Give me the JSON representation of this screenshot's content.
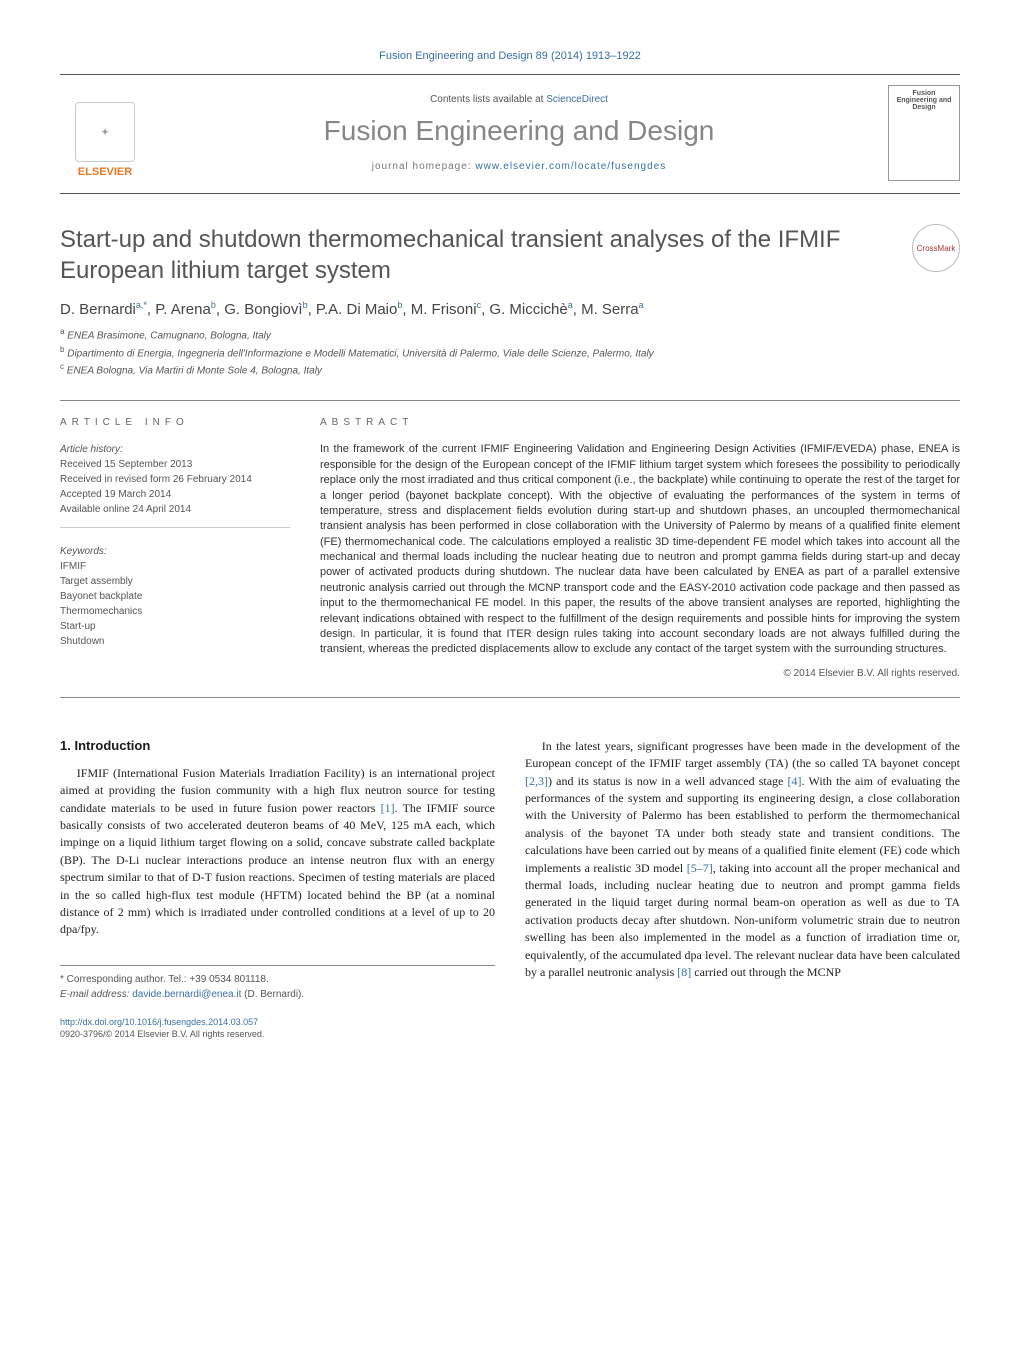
{
  "header": {
    "citation": "Fusion Engineering and Design 89 (2014) 1913–1922",
    "contents_prefix": "Contents lists available at ",
    "contents_link": "ScienceDirect",
    "journal_name": "Fusion Engineering and Design",
    "homepage_prefix": "journal homepage: ",
    "homepage_link": "www.elsevier.com/locate/fusengdes",
    "publisher": "ELSEVIER",
    "cover_text": "Fusion Engineering and Design"
  },
  "crossmark": "CrossMark",
  "title": "Start-up and shutdown thermomechanical transient analyses of the IFMIF European lithium target system",
  "authors_html": "D. Bernardi<sup>a,*</sup>, P. Arena<sup>b</sup>, G. Bongiovì<sup>b</sup>, P.A. Di Maio<sup>b</sup>, M. Frisoni<sup>c</sup>, G. Miccichè<sup>a</sup>, M. Serra<sup>a</sup>",
  "affiliations": {
    "a": "ENEA Brasimone, Camugnano, Bologna, Italy",
    "b": "Dipartimento di Energia, Ingegneria dell'Informazione e Modelli Matematici, Università di Palermo, Viale delle Scienze, Palermo, Italy",
    "c": "ENEA Bologna, Via Martiri di Monte Sole 4, Bologna, Italy"
  },
  "article_info": {
    "label": "ARTICLE INFO",
    "history_label": "Article history:",
    "received": "Received 15 September 2013",
    "revised": "Received in revised form 26 February 2014",
    "accepted": "Accepted 19 March 2014",
    "online": "Available online 24 April 2014",
    "keywords_label": "Keywords:",
    "keywords": [
      "IFMIF",
      "Target assembly",
      "Bayonet backplate",
      "Thermomechanics",
      "Start-up",
      "Shutdown"
    ]
  },
  "abstract": {
    "label": "ABSTRACT",
    "text": "In the framework of the current IFMIF Engineering Validation and Engineering Design Activities (IFMIF/EVEDA) phase, ENEA is responsible for the design of the European concept of the IFMIF lithium target system which foresees the possibility to periodically replace only the most irradiated and thus critical component (i.e., the backplate) while continuing to operate the rest of the target for a longer period (bayonet backplate concept). With the objective of evaluating the performances of the system in terms of temperature, stress and displacement fields evolution during start-up and shutdown phases, an uncoupled thermomechanical transient analysis has been performed in close collaboration with the University of Palermo by means of a qualified finite element (FE) thermomechanical code. The calculations employed a realistic 3D time-dependent FE model which takes into account all the mechanical and thermal loads including the nuclear heating due to neutron and prompt gamma fields during start-up and decay power of activated products during shutdown. The nuclear data have been calculated by ENEA as part of a parallel extensive neutronic analysis carried out through the MCNP transport code and the EASY-2010 activation code package and then passed as input to the thermomechanical FE model. In this paper, the results of the above transient analyses are reported, highlighting the relevant indications obtained with respect to the fulfillment of the design requirements and possible hints for improving the system design. In particular, it is found that ITER design rules taking into account secondary loads are not always fulfilled during the transient, whereas the predicted displacements allow to exclude any contact of the target system with the surrounding structures.",
    "copyright": "© 2014 Elsevier B.V. All rights reserved."
  },
  "body": {
    "heading": "1.  Introduction",
    "col1": "IFMIF (International Fusion Materials Irradiation Facility) is an international project aimed at providing the fusion community with a high flux neutron source for testing candidate materials to be used in future fusion power reactors [1]. The IFMIF source basically consists of two accelerated deuteron beams of 40 MeV, 125 mA each, which impinge on a liquid lithium target flowing on a solid, concave substrate called backplate (BP). The D-Li nuclear interactions produce an intense neutron flux with an energy spectrum similar to that of D-T fusion reactions. Specimen of testing materials are placed in the so called high-flux test module (HFTM) located behind the BP (at a nominal distance of 2 mm) which is irradiated under controlled conditions at a level of up to 20 dpa/fpy.",
    "col2": "In the latest years, significant progresses have been made in the development of the European concept of the IFMIF target assembly (TA) (the so called TA bayonet concept [2,3]) and its status is now in a well advanced stage [4]. With the aim of evaluating the performances of the system and supporting its engineering design, a close collaboration with the University of Palermo has been established to perform the thermomechanical analysis of the bayonet TA under both steady state and transient conditions. The calculations have been carried out by means of a qualified finite element (FE) code which implements a realistic 3D model [5–7], taking into account all the proper mechanical and thermal loads, including nuclear heating due to neutron and prompt gamma fields generated in the liquid target during normal beam-on operation as well as due to TA activation products decay after shutdown. Non-uniform volumetric strain due to neutron swelling has been also implemented in the model as a function of irradiation time or, equivalently, of the accumulated dpa level. The relevant nuclear data have been calculated by a parallel neutronic analysis [8] carried out through the MCNP"
  },
  "footnote": {
    "corr": "Corresponding author. Tel.: +39 0534 801118.",
    "email_label": "E-mail address: ",
    "email": "davide.bernardi@enea.it",
    "email_person": " (D. Bernardi)."
  },
  "doi": {
    "link": "http://dx.doi.org/10.1016/j.fusengdes.2014.03.057",
    "issn": "0920-3796/© 2014 Elsevier B.V. All rights reserved."
  },
  "colors": {
    "link": "#3a6ea5",
    "publisher": "#e87722",
    "title_gray": "#555555"
  }
}
